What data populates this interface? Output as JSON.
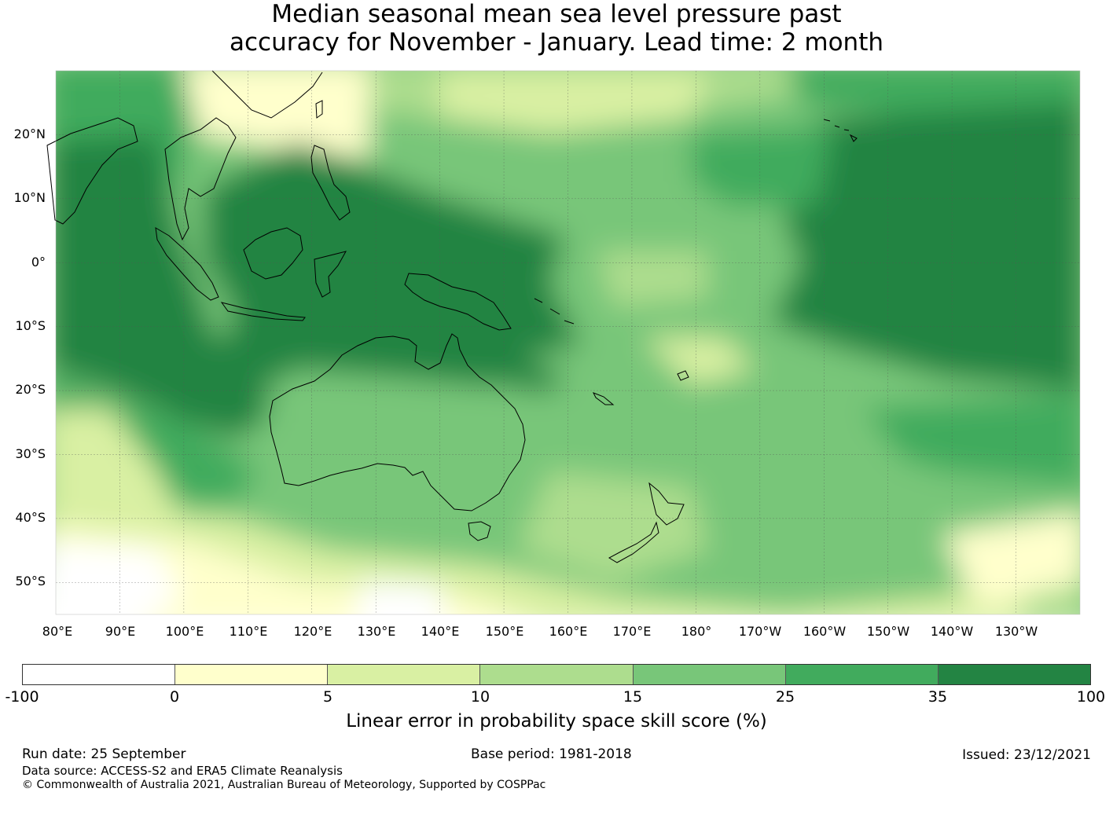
{
  "title": {
    "line1": "Median seasonal mean sea level pressure past",
    "line2": "accuracy for November - January. Lead time: 2 month"
  },
  "map": {
    "lat_labels": [
      "20°N",
      "10°N",
      "0°",
      "10°S",
      "20°S",
      "30°S",
      "40°S",
      "50°S"
    ],
    "lon_labels": [
      "80°E",
      "90°E",
      "100°E",
      "110°E",
      "120°E",
      "130°E",
      "140°E",
      "150°E",
      "160°E",
      "170°E",
      "180°",
      "170°W",
      "160°W",
      "150°W",
      "140°W",
      "130°W"
    ],
    "lon_range": [
      80,
      240
    ],
    "lat_range": [
      -55,
      30
    ],
    "grid": true
  },
  "colorbar": {
    "ticks": [
      "-100",
      "0",
      "5",
      "10",
      "15",
      "25",
      "35",
      "100"
    ],
    "colors": [
      "#ffffff",
      "#ffffcc",
      "#d9f0a3",
      "#addd8e",
      "#78c679",
      "#41ab5d",
      "#238443"
    ],
    "label": "Linear error in probability space skill score (%)"
  },
  "footer": {
    "run_date": "Run date: 25 September",
    "base_period": "Base period: 1981-2018",
    "issued": "Issued: 23/12/2021",
    "data_source": "Data source: ACCESS-S2 and ERA5 Climate Reanalysis",
    "copyright": "© Commonwealth of Australia 2021, Australian Bureau of Meteorology, Supported by COSPPac"
  }
}
